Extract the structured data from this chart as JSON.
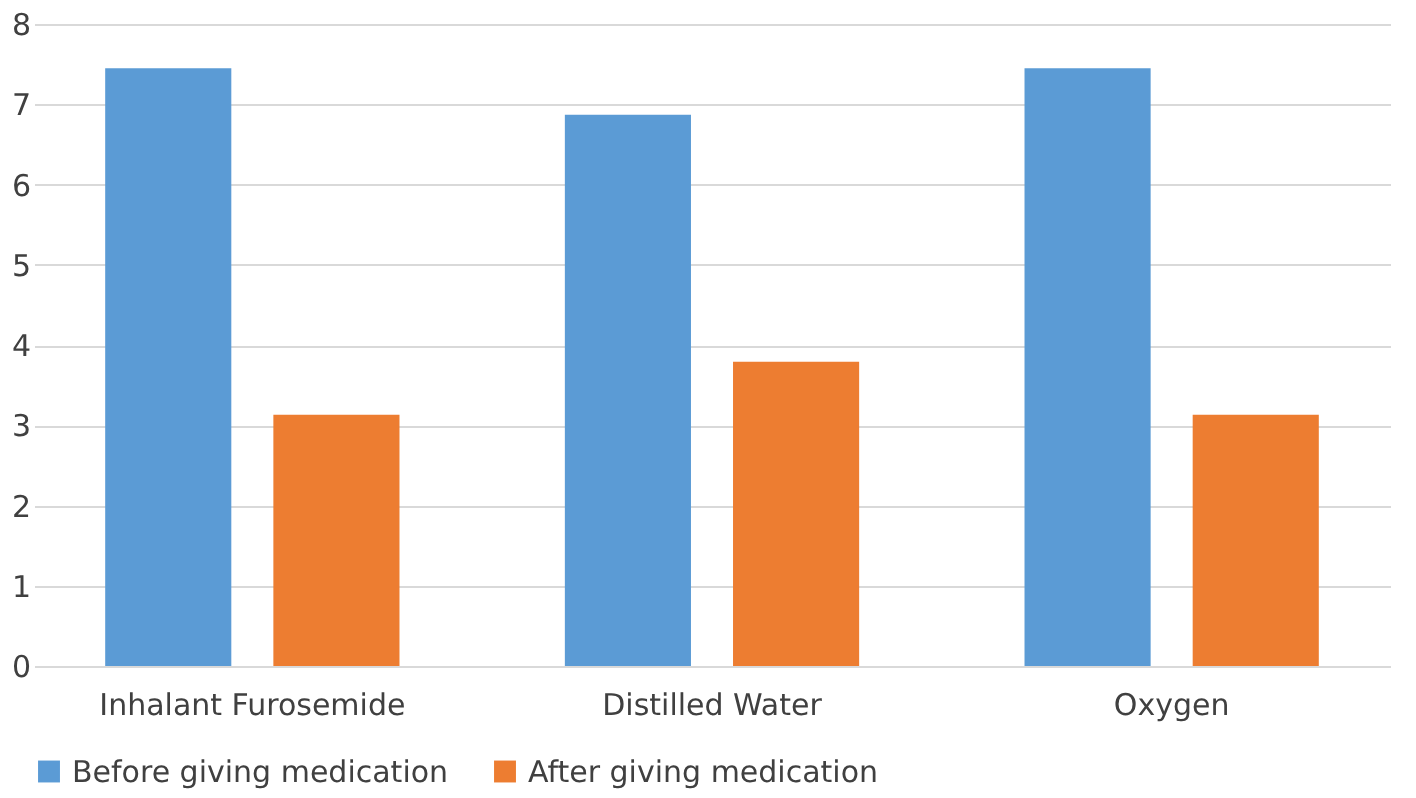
{
  "chart_data": {
    "type": "bar",
    "categories": [
      "Inhalant Furosemide",
      "Distilled Water",
      "Oxygen"
    ],
    "series": [
      {
        "name": "Before giving medication",
        "color": "#5b9bd5",
        "values": [
          7.45,
          6.87,
          7.45
        ]
      },
      {
        "name": "After giving medication",
        "color": "#ed7d31",
        "values": [
          3.13,
          3.79,
          3.13
        ]
      }
    ],
    "ylim": [
      0,
      8
    ],
    "yticks": [
      0,
      1,
      2,
      3,
      4,
      5,
      6,
      7,
      8
    ],
    "grid": "y",
    "legend": "bottom"
  }
}
